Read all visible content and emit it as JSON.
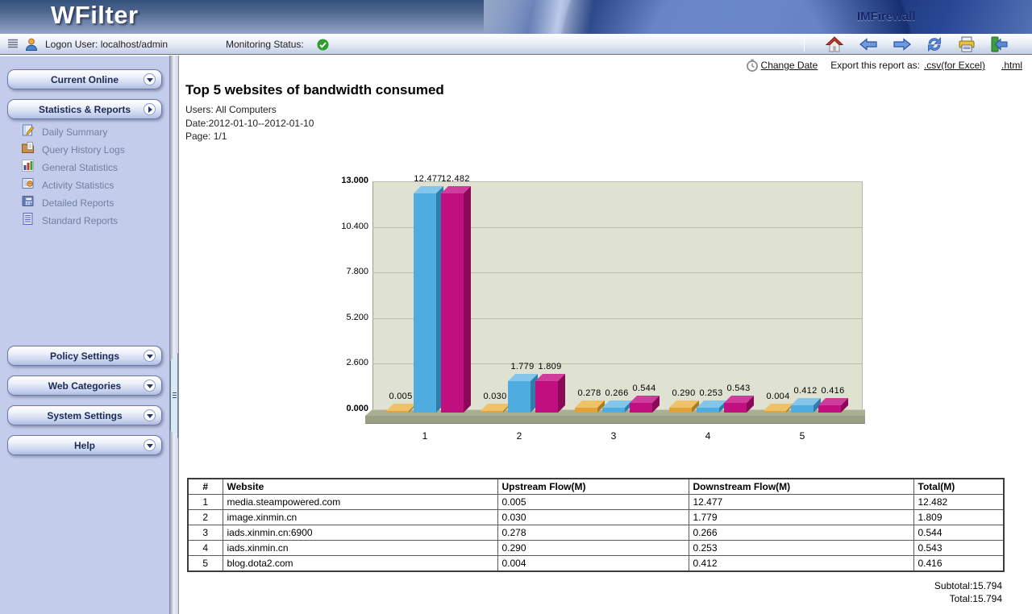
{
  "header": {
    "logo": "WFilter",
    "brand": "IMFirewall"
  },
  "toolbar": {
    "logon": "Logon User: localhost/admin",
    "monitoring": "Monitoring Status:",
    "status_icon": "check-circle-icon",
    "status_color": "#2E9E2E",
    "nav_icons": [
      "home-icon",
      "back-arrow-icon",
      "forward-arrow-icon",
      "refresh-icon",
      "print-icon",
      "exit-icon"
    ]
  },
  "report_bar": {
    "change_date_icon": "stopwatch-icon",
    "change_date": "Change Date",
    "export_label": "Export this report as:",
    "export_csv": ".csv(for Excel)",
    "export_html": ".html"
  },
  "sidebar": {
    "sections": [
      {
        "id": "current-online",
        "label": "Current Online",
        "chevron": "down",
        "items": []
      },
      {
        "id": "statistics-reports",
        "label": "Statistics & Reports",
        "chevron": "right",
        "items": [
          {
            "icon": "daily-summary-icon",
            "label": "Daily Summary"
          },
          {
            "icon": "query-history-logs-icon",
            "label": "Query History Logs"
          },
          {
            "icon": "general-statistics-icon",
            "label": "General Statistics"
          },
          {
            "icon": "activity-statistics-icon",
            "label": "Activity Statistics"
          },
          {
            "icon": "detailed-reports-icon",
            "label": "Detailed Reports"
          },
          {
            "icon": "standard-reports-icon",
            "label": "Standard Reports"
          }
        ]
      },
      {
        "id": "policy-settings",
        "label": "Policy Settings",
        "chevron": "down",
        "items": []
      },
      {
        "id": "web-categories",
        "label": "Web Categories",
        "chevron": "down",
        "items": []
      },
      {
        "id": "system-settings",
        "label": "System Settings",
        "chevron": "down",
        "items": []
      },
      {
        "id": "help",
        "label": "Help",
        "chevron": "down",
        "items": []
      }
    ]
  },
  "report": {
    "title": "Top 5 websites of bandwidth consumed",
    "users": "Users: All Computers",
    "date": "Date:2012-01-10--2012-01-10",
    "page": "Page:  1/1"
  },
  "chart_data": {
    "type": "bar",
    "title": "Top 5 websites of bandwidth consumed",
    "categories": [
      "1",
      "2",
      "3",
      "4",
      "5"
    ],
    "series": [
      {
        "name": "Upstream Flow(M)",
        "color": "#E2A33C",
        "color_top": "#EFC168",
        "color_side": "#AD7B1E",
        "values": [
          0.005,
          0.03,
          0.278,
          0.29,
          0.004
        ]
      },
      {
        "name": "Downstream Flow(M)",
        "color": "#4FACE0",
        "color_top": "#83C6EA",
        "color_side": "#2E7DAB",
        "values": [
          12.477,
          1.779,
          0.266,
          0.253,
          0.412
        ]
      },
      {
        "name": "Total(M)",
        "color": "#C20F7F",
        "color_top": "#CE3D9B",
        "color_side": "#8A0A58",
        "values": [
          12.482,
          1.809,
          0.544,
          0.543,
          0.416
        ]
      }
    ],
    "ylim": [
      0,
      13.0
    ],
    "yticks": [
      0.0,
      2.6,
      5.2,
      7.8,
      10.4,
      13.0
    ],
    "grid": true,
    "legend": "none",
    "plot_bg": "#DFE2D1",
    "grid_color": "#BABEAC",
    "floor_top_color": "#A9AE94",
    "floor_front_color": "#99A085"
  },
  "table": {
    "columns": [
      "#",
      "Website",
      "Upstream Flow(M)",
      "Downstream Flow(M)",
      "Total(M)"
    ],
    "rows": [
      [
        "1",
        "media.steampowered.com",
        "0.005",
        "12.477",
        "12.482"
      ],
      [
        "2",
        "image.xinmin.cn",
        "0.030",
        "1.779",
        "1.809"
      ],
      [
        "3",
        "iads.xinmin.cn:6900",
        "0.278",
        "0.266",
        "0.544"
      ],
      [
        "4",
        "iads.xinmin.cn",
        "0.290",
        "0.253",
        "0.543"
      ],
      [
        "5",
        "blog.dota2.com",
        "0.004",
        "0.412",
        "0.416"
      ]
    ]
  },
  "totals": {
    "subtotal": "Subtotal:15.794",
    "total": "Total:15.794"
  }
}
